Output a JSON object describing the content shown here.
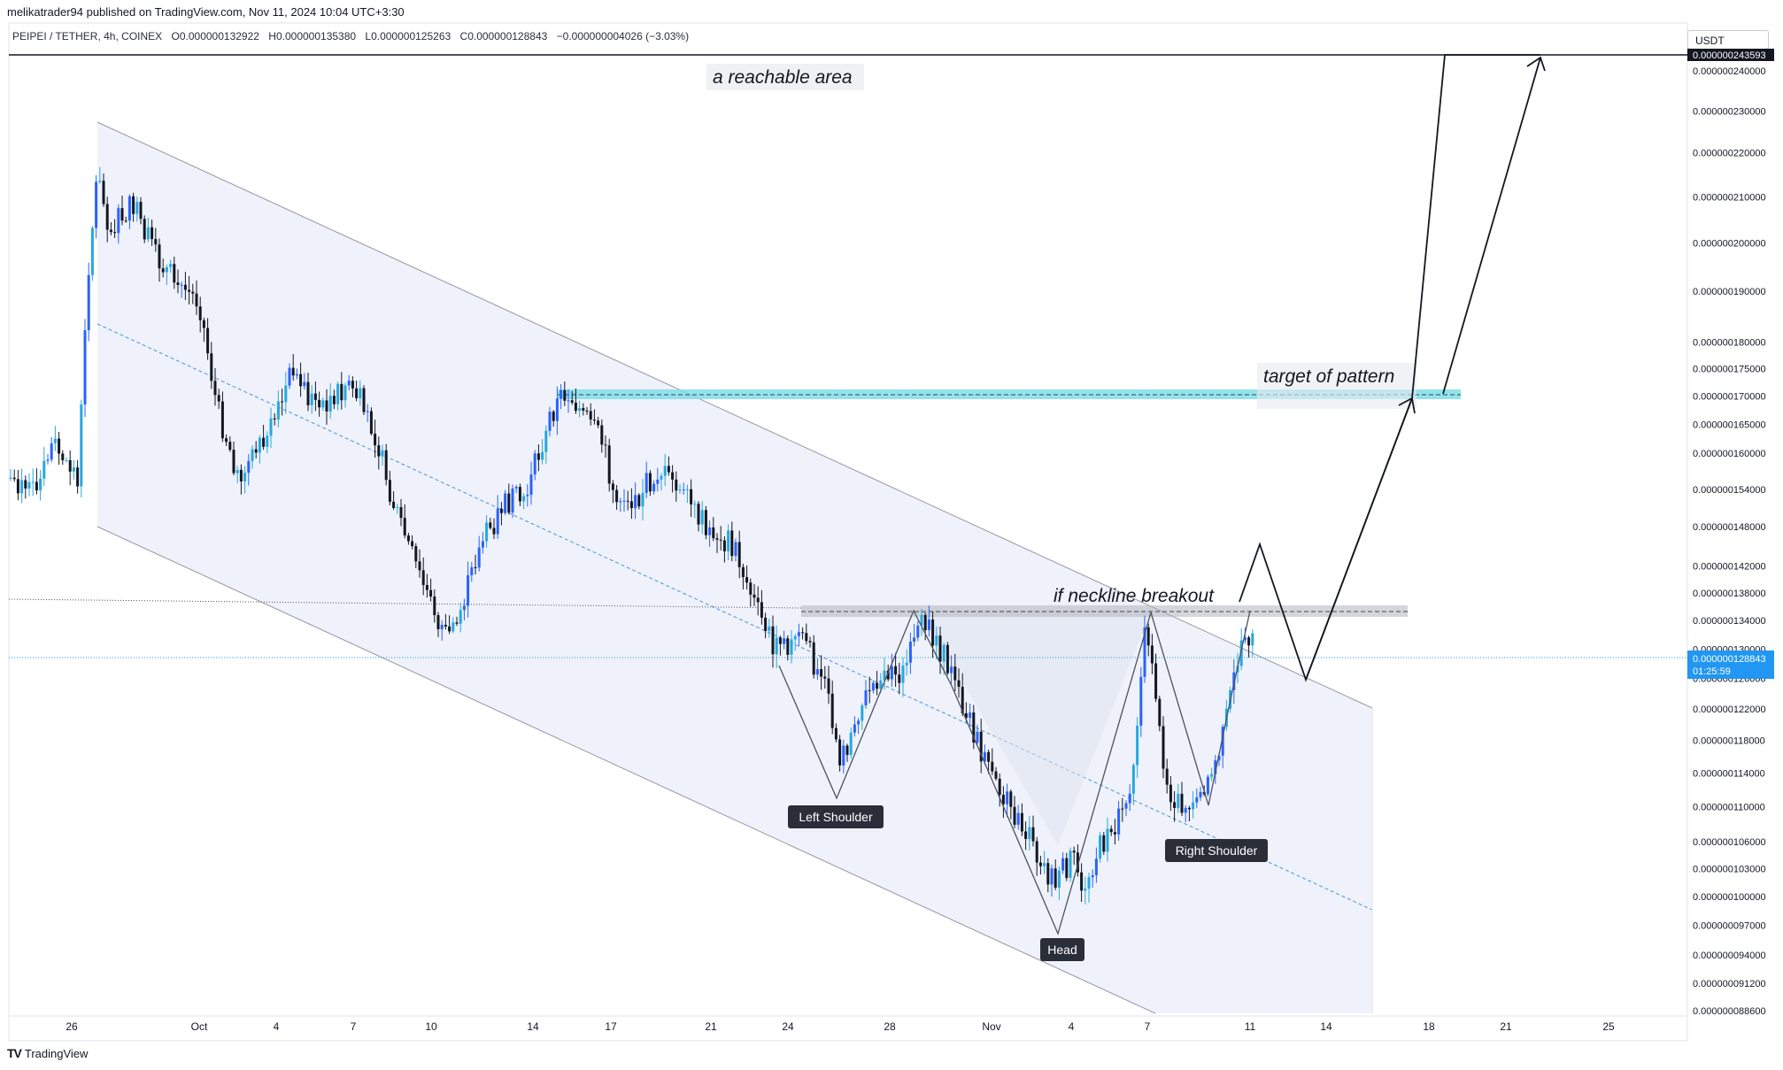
{
  "header": {
    "published": "melikatrader94 published on TradingView.com, Nov 11, 2024 10:04 UTC+3:30"
  },
  "legend": {
    "symbol": "PEIPEI / TETHER, 4h, COINEX",
    "open": "O0.000000132922",
    "high": "H0.000000135380",
    "low": "L0.000000125263",
    "close": "C0.000000128843",
    "change": "−0.000000004026 (−3.03%)"
  },
  "currency": "USDT",
  "footer": {
    "brand": "TradingView"
  },
  "colors": {
    "up": "#2962ff",
    "up_light": "#26a8e0",
    "down": "#131722",
    "target_zone": "#80deea",
    "channel_fill": "#e3eaf7",
    "last_price": "#2196f3"
  },
  "chart_data": {
    "type": "candlestick",
    "x_tick_labels": [
      "26",
      "Oct",
      "4",
      "7",
      "10",
      "14",
      "17",
      "21",
      "24",
      "28",
      "Nov",
      "4",
      "7",
      "11",
      "14",
      "18",
      "21",
      "25"
    ],
    "y_tick_labels": [
      "0.000000240000",
      "0.000000230000",
      "0.000000220000",
      "0.000000210000",
      "0.000000200000",
      "0.000000190000",
      "0.000000180000",
      "0.000000175000",
      "0.000000170000",
      "0.000000165000",
      "0.000000160000",
      "0.000000154000",
      "0.000000148000",
      "0.000000142000",
      "0.000000138000",
      "0.000000134000",
      "0.000000130000",
      "0.000000126000",
      "0.000000122000",
      "0.000000118000",
      "0.000000114000",
      "0.000000110000",
      "0.000000106000",
      "0.000000103000",
      "0.000000100000",
      "0.000000097000",
      "0.000000094000",
      "0.000000091200",
      "0.000000088600"
    ],
    "y_scale": "log",
    "last_price_label": "0.000000128843",
    "countdown": "01:25:59",
    "top_marker_label": "0.000000243593",
    "annotations": {
      "reachable": "a reachable area",
      "target": "target of pattern",
      "neckline": "if neckline breakout",
      "left_shoulder": "Left Shoulder",
      "head": "Head",
      "right_shoulder": "Right Shoulder"
    }
  }
}
